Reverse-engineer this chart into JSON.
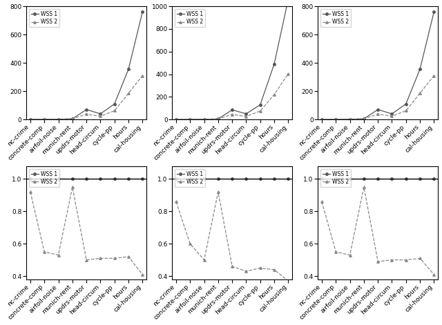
{
  "categories": [
    "nc-crime",
    "concrete-comp",
    "airfoil-noise",
    "munich-rent",
    "updrs-motor",
    "head-circum",
    "cycle-pp",
    "hours",
    "cal-housing"
  ],
  "top_plots": [
    {
      "wss1": [
        1,
        1,
        2,
        5,
        70,
        40,
        110,
        355,
        760
      ],
      "wss2": [
        1,
        1,
        2,
        5,
        38,
        23,
        62,
        185,
        310
      ],
      "ylim": [
        0,
        800
      ],
      "yticks": [
        0,
        200,
        400,
        600,
        800
      ]
    },
    {
      "wss1": [
        1,
        1,
        2,
        5,
        85,
        50,
        130,
        490,
        1060
      ],
      "wss2": [
        1,
        1,
        2,
        5,
        45,
        27,
        75,
        220,
        405
      ],
      "ylim": [
        0,
        1000
      ],
      "yticks": [
        0,
        200,
        400,
        600,
        800,
        1000
      ]
    },
    {
      "wss1": [
        1,
        1,
        2,
        5,
        70,
        40,
        110,
        355,
        760
      ],
      "wss2": [
        1,
        1,
        2,
        5,
        38,
        23,
        62,
        185,
        310
      ],
      "ylim": [
        0,
        800
      ],
      "yticks": [
        0,
        200,
        400,
        600,
        800
      ]
    }
  ],
  "bottom_plots": [
    {
      "wss1": [
        1.0,
        1.0,
        1.0,
        1.0,
        1.0,
        1.0,
        1.0,
        1.0,
        1.0
      ],
      "wss2": [
        0.92,
        0.55,
        0.53,
        0.95,
        0.5,
        0.51,
        0.51,
        0.52,
        0.41
      ],
      "ylim": [
        0.38,
        1.08
      ],
      "yticks": [
        0.4,
        0.6,
        0.8,
        1.0
      ]
    },
    {
      "wss1": [
        1.0,
        1.0,
        1.0,
        1.0,
        1.0,
        1.0,
        1.0,
        1.0,
        1.0
      ],
      "wss2": [
        0.86,
        0.6,
        0.5,
        0.92,
        0.46,
        0.43,
        0.45,
        0.44,
        0.37
      ],
      "ylim": [
        0.38,
        1.08
      ],
      "yticks": [
        0.4,
        0.6,
        0.8,
        1.0
      ]
    },
    {
      "wss1": [
        1.0,
        1.0,
        1.0,
        1.0,
        1.0,
        1.0,
        1.0,
        1.0,
        1.0
      ],
      "wss2": [
        0.86,
        0.55,
        0.53,
        0.95,
        0.49,
        0.5,
        0.5,
        0.51,
        0.41
      ],
      "ylim": [
        0.38,
        1.08
      ],
      "yticks": [
        0.4,
        0.6,
        0.8,
        1.0
      ]
    }
  ],
  "line1_color": "#555555",
  "line2_color": "#888888",
  "legend_labels": [
    "WSS 1",
    "WSS 2"
  ],
  "fig_width": 6.4,
  "fig_height": 4.71
}
